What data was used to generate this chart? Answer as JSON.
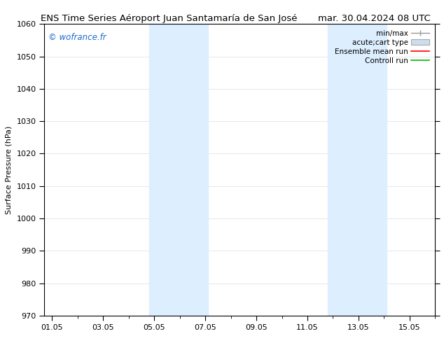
{
  "title_left": "ENS Time Series Aéroport Juan Santamaría de San José",
  "title_right": "mar. 30.04.2024 08 UTC",
  "ylabel": "Surface Pressure (hPa)",
  "ylim": [
    970,
    1060
  ],
  "yticks": [
    970,
    980,
    990,
    1000,
    1010,
    1020,
    1030,
    1040,
    1050,
    1060
  ],
  "xtick_labels": [
    "01.05",
    "03.05",
    "05.05",
    "07.05",
    "09.05",
    "11.05",
    "13.05",
    "15.05"
  ],
  "xtick_positions": [
    0,
    2,
    4,
    6,
    8,
    10,
    12,
    14
  ],
  "xlim": [
    -0.3,
    15.0
  ],
  "blue_bands": [
    {
      "x_start": 3.8,
      "x_end": 6.1
    },
    {
      "x_start": 10.8,
      "x_end": 13.1
    }
  ],
  "band_color": "#ddeeff",
  "background_color": "#ffffff",
  "watermark": "© wofrance.fr",
  "watermark_color": "#1a6acc",
  "legend_items": [
    {
      "label": "min/max",
      "color": "#999999",
      "type": "minmax"
    },
    {
      "label": "acute;cart type",
      "color": "#ccddee",
      "type": "bar"
    },
    {
      "label": "Ensemble mean run",
      "color": "#ff0000",
      "type": "line"
    },
    {
      "label": "Controll run",
      "color": "#00bb00",
      "type": "line"
    }
  ],
  "title_fontsize": 9.5,
  "axis_label_fontsize": 8,
  "tick_fontsize": 8,
  "legend_fontsize": 7.5
}
